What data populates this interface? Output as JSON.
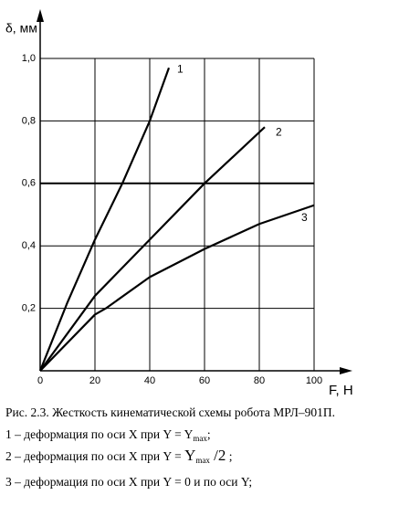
{
  "chart_data": {
    "type": "line",
    "ylabel": "δ, мм",
    "xlabel": "F, Н",
    "xlim": [
      0,
      100
    ],
    "xticks": [
      0,
      20,
      40,
      60,
      80,
      100
    ],
    "ylim": [
      0,
      1.0
    ],
    "yticks": [
      {
        "value": 0.2,
        "label": "0,2"
      },
      {
        "value": 0.4,
        "label": "0,4"
      },
      {
        "value": 0.6,
        "label": "0,6"
      },
      {
        "value": 0.8,
        "label": "0,8"
      },
      {
        "value": 1.0,
        "label": "1,0"
      }
    ],
    "grid": true,
    "reference_line": 0.6,
    "color": "#000000",
    "series": [
      {
        "name": "1",
        "x": [
          0,
          10,
          20,
          30,
          40,
          47
        ],
        "values": [
          0,
          0.22,
          0.42,
          0.6,
          0.8,
          0.97
        ]
      },
      {
        "name": "2",
        "x": [
          0,
          20,
          40,
          60,
          82
        ],
        "values": [
          0,
          0.24,
          0.42,
          0.6,
          0.78
        ]
      },
      {
        "name": "3",
        "x": [
          0,
          20,
          24,
          40,
          60,
          80,
          100
        ],
        "values": [
          0,
          0.18,
          0.2,
          0.3,
          0.39,
          0.47,
          0.53
        ]
      }
    ]
  },
  "caption": [
    [
      {
        "text": "Рис. 2.3. Жесткость кинематической схемы робота МРЛ–901П."
      }
    ],
    [
      {
        "text": "1 – деформация по оси X при Y = Y"
      },
      {
        "text": "max",
        "style": "sub"
      },
      {
        "text": ";"
      }
    ],
    [
      {
        "text": "2 – деформация по оси X при Y = "
      },
      {
        "text": "Y",
        "style": "big"
      },
      {
        "text": "max",
        "style": "sub"
      },
      {
        "text": " /2",
        "style": "big"
      },
      {
        "text": " ;"
      }
    ],
    [
      {
        "text": "3 – деформация по оси X при Y = 0 и по оси Y;"
      }
    ]
  ]
}
